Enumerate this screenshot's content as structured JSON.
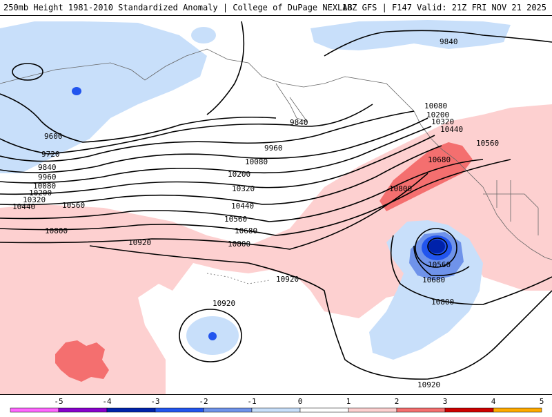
{
  "header": {
    "title_left": "250mb Height 1981-2010 Standardized Anomaly | College of DuPage NEXLAB",
    "title_right": "18Z GFS | F147 Valid: 21Z FRI NOV 21 2025"
  },
  "contour_labels": {
    "c9840_ne": "9840",
    "c10080_e": "10080",
    "c10200_e": "10200",
    "c10320_e": "10320",
    "c10440_e": "10440",
    "c10560_e": "10560",
    "c10680_e": "10680",
    "c10800_e": "10800",
    "c9600_w": "9600",
    "c9720_w": "9720",
    "c9840_w": "9840",
    "c9960_w": "9960",
    "c10080_w": "10080",
    "c10200_w": "10200",
    "c10320_w": "10320",
    "c10440_w": "10440",
    "c10560_w": "10560",
    "c10800_w": "10800",
    "c10920_w": "10920",
    "c9840_mid": "9840",
    "c9960_mid": "9960",
    "c10080_mid": "10080",
    "c10200_mid": "10200",
    "c10320_mid": "10320",
    "c10440_mid": "10440",
    "c10560_mid": "10560",
    "c10680_mid": "10680",
    "c10800_mid": "10800",
    "c10920_mid": "10920",
    "c10920_low": "10920",
    "c10560_low": "10560",
    "c10680_low": "10680",
    "c10800_low": "10800",
    "c10920_s": "10920"
  },
  "colorbar": {
    "labels": [
      "-5",
      "-4",
      "-3",
      "-2",
      "-1",
      "0",
      "1",
      "2",
      "3",
      "4",
      "5"
    ],
    "colors": [
      "#ff66ff",
      "#8800cc",
      "#0022aa",
      "#2255ee",
      "#6f93ea",
      "#c8dffa",
      "#ffffff",
      "#fdd0d0",
      "#f46f6f",
      "#cc0000",
      "#ffaa00"
    ]
  }
}
